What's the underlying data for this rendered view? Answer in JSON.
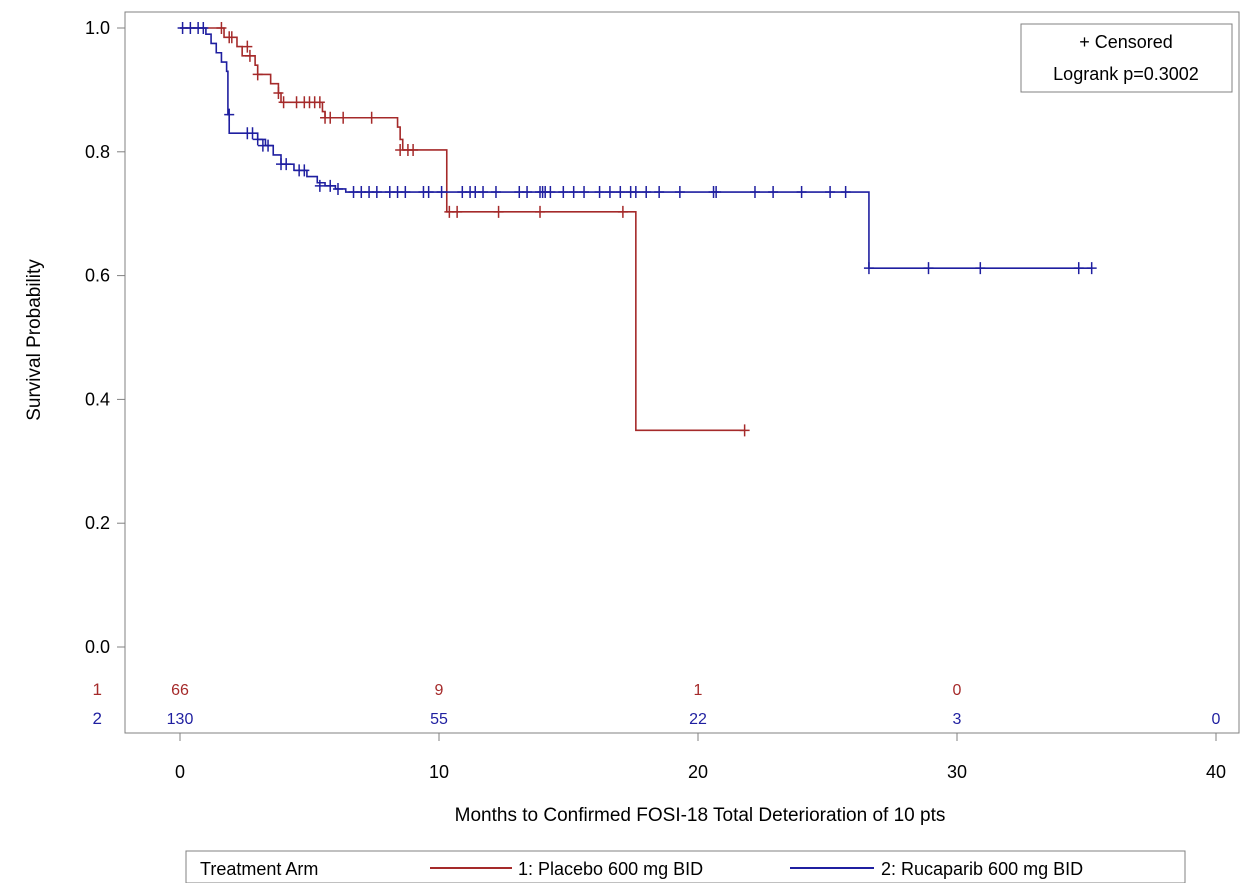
{
  "chart_data": {
    "type": "line",
    "step": true,
    "xlabel": "Months to Confirmed FOSI-18 Total Deterioration of 10 pts",
    "ylabel": "Survival Probability",
    "xlim": [
      -4,
      40
    ],
    "ylim": [
      -0.05,
      1.025
    ],
    "xticks": [
      0,
      10,
      20,
      30,
      40
    ],
    "yticks": [
      0.0,
      0.2,
      0.4,
      0.6,
      0.8,
      1.0
    ],
    "ytick_labels": [
      "0.0",
      "0.2",
      "0.4",
      "0.6",
      "0.8",
      "1.0"
    ],
    "grid": false,
    "inset": {
      "censored_label": "+ Censored",
      "logrank_label": "Logrank p=0.3002",
      "placement": "top-right"
    },
    "legend": {
      "title": "Treatment Arm",
      "placement": "bottom"
    },
    "series": [
      {
        "id": "1",
        "name": "1: Placebo 600 mg BID",
        "color": "#A52A2A",
        "steps": [
          [
            0,
            1.0
          ],
          [
            1.7,
            0.985
          ],
          [
            2.2,
            0.97
          ],
          [
            2.4,
            0.955
          ],
          [
            2.9,
            0.94
          ],
          [
            3.0,
            0.925
          ],
          [
            3.5,
            0.91
          ],
          [
            3.8,
            0.895
          ],
          [
            3.9,
            0.88
          ],
          [
            5.5,
            0.865
          ],
          [
            5.6,
            0.855
          ],
          [
            8.4,
            0.84
          ],
          [
            8.5,
            0.82
          ],
          [
            8.6,
            0.803
          ],
          [
            10.3,
            0.703
          ],
          [
            17.6,
            0.35
          ],
          [
            21.8,
            0.35
          ]
        ],
        "censored": [
          [
            1.6,
            1.0
          ],
          [
            1.9,
            0.985
          ],
          [
            2.0,
            0.985
          ],
          [
            2.6,
            0.97
          ],
          [
            2.7,
            0.955
          ],
          [
            3.0,
            0.925
          ],
          [
            3.8,
            0.895
          ],
          [
            4.0,
            0.88
          ],
          [
            4.5,
            0.88
          ],
          [
            4.8,
            0.88
          ],
          [
            5.0,
            0.88
          ],
          [
            5.2,
            0.88
          ],
          [
            5.4,
            0.88
          ],
          [
            5.6,
            0.855
          ],
          [
            5.8,
            0.855
          ],
          [
            6.3,
            0.855
          ],
          [
            7.4,
            0.855
          ],
          [
            8.5,
            0.803
          ],
          [
            8.8,
            0.803
          ],
          [
            9.0,
            0.803
          ],
          [
            10.4,
            0.703
          ],
          [
            10.7,
            0.703
          ],
          [
            12.3,
            0.703
          ],
          [
            13.9,
            0.703
          ],
          [
            17.1,
            0.703
          ],
          [
            21.8,
            0.35
          ]
        ]
      },
      {
        "id": "2",
        "name": "2: Rucaparib 600 mg BID",
        "color": "#1F1FA0",
        "steps": [
          [
            0,
            1.0
          ],
          [
            1.0,
            0.99
          ],
          [
            1.2,
            0.975
          ],
          [
            1.4,
            0.96
          ],
          [
            1.6,
            0.945
          ],
          [
            1.8,
            0.93
          ],
          [
            1.85,
            0.86
          ],
          [
            1.9,
            0.83
          ],
          [
            3.0,
            0.82
          ],
          [
            3.3,
            0.81
          ],
          [
            3.6,
            0.795
          ],
          [
            3.9,
            0.78
          ],
          [
            4.4,
            0.77
          ],
          [
            4.9,
            0.76
          ],
          [
            5.3,
            0.75
          ],
          [
            5.6,
            0.745
          ],
          [
            6.0,
            0.74
          ],
          [
            6.4,
            0.735
          ],
          [
            26.4,
            0.735
          ],
          [
            26.6,
            0.612
          ],
          [
            35.2,
            0.612
          ]
        ],
        "censored": [
          [
            0.1,
            1.0
          ],
          [
            0.4,
            1.0
          ],
          [
            0.7,
            1.0
          ],
          [
            0.9,
            1.0
          ],
          [
            1.9,
            0.86
          ],
          [
            2.6,
            0.83
          ],
          [
            2.8,
            0.83
          ],
          [
            3.0,
            0.82
          ],
          [
            3.2,
            0.81
          ],
          [
            3.4,
            0.81
          ],
          [
            3.9,
            0.78
          ],
          [
            4.1,
            0.78
          ],
          [
            4.6,
            0.77
          ],
          [
            4.8,
            0.77
          ],
          [
            5.4,
            0.745
          ],
          [
            5.8,
            0.745
          ],
          [
            6.1,
            0.74
          ],
          [
            6.7,
            0.735
          ],
          [
            7.0,
            0.735
          ],
          [
            7.3,
            0.735
          ],
          [
            7.6,
            0.735
          ],
          [
            8.1,
            0.735
          ],
          [
            8.4,
            0.735
          ],
          [
            8.7,
            0.735
          ],
          [
            9.4,
            0.735
          ],
          [
            9.6,
            0.735
          ],
          [
            10.1,
            0.735
          ],
          [
            10.9,
            0.735
          ],
          [
            11.2,
            0.735
          ],
          [
            11.4,
            0.735
          ],
          [
            11.7,
            0.735
          ],
          [
            12.2,
            0.735
          ],
          [
            13.1,
            0.735
          ],
          [
            13.4,
            0.735
          ],
          [
            13.9,
            0.735
          ],
          [
            14.0,
            0.735
          ],
          [
            14.1,
            0.735
          ],
          [
            14.3,
            0.735
          ],
          [
            14.8,
            0.735
          ],
          [
            15.2,
            0.735
          ],
          [
            15.6,
            0.735
          ],
          [
            16.2,
            0.735
          ],
          [
            16.6,
            0.735
          ],
          [
            17.0,
            0.735
          ],
          [
            17.4,
            0.735
          ],
          [
            17.6,
            0.735
          ],
          [
            18.0,
            0.735
          ],
          [
            18.5,
            0.735
          ],
          [
            19.3,
            0.735
          ],
          [
            20.6,
            0.735
          ],
          [
            20.7,
            0.735
          ],
          [
            22.2,
            0.735
          ],
          [
            22.9,
            0.735
          ],
          [
            24.0,
            0.735
          ],
          [
            25.1,
            0.735
          ],
          [
            25.7,
            0.735
          ],
          [
            26.6,
            0.612
          ],
          [
            28.9,
            0.612
          ],
          [
            30.9,
            0.612
          ],
          [
            34.7,
            0.612
          ],
          [
            35.2,
            0.612
          ]
        ]
      }
    ],
    "at_risk": {
      "times": [
        0,
        10,
        20,
        30,
        40
      ],
      "rows": [
        {
          "label": "1",
          "counts": [
            "66",
            "9",
            "1",
            "0"
          ]
        },
        {
          "label": "2",
          "counts": [
            "130",
            "55",
            "22",
            "3",
            "0"
          ]
        }
      ]
    }
  }
}
